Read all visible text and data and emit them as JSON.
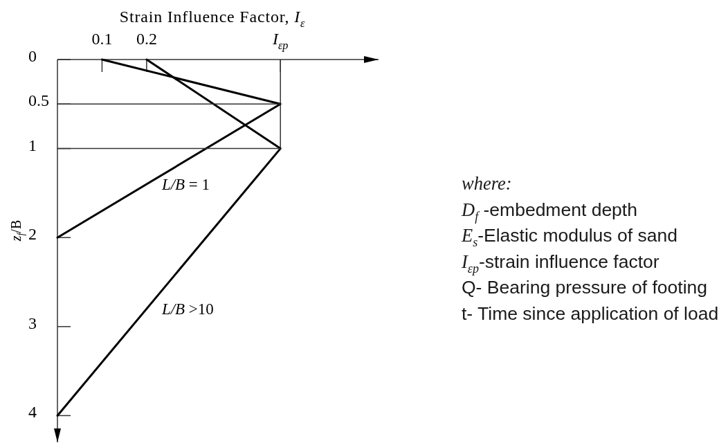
{
  "chart_data": {
    "type": "line",
    "xlabel": "Strain Influence Factor, I$_{ε}$",
    "ylabel": "z$_{f}$/B",
    "xlim": [
      0,
      0.72
    ],
    "ylim": [
      4.3,
      0
    ],
    "xticks": [
      0.1,
      0.2,
      {
        "value": 0.5,
        "label": "I$_{εp}$"
      }
    ],
    "yticks": [
      0,
      0.5,
      1,
      2,
      3,
      4
    ],
    "series": [
      {
        "name": "L/B = 1",
        "color": "#000000",
        "x": [
          0.1,
          0.5,
          0
        ],
        "values": [
          0,
          0.5,
          2
        ]
      },
      {
        "name": "L/B >10",
        "color": "#000000",
        "x": [
          0.2,
          0.5,
          0
        ],
        "values": [
          0,
          1,
          4
        ]
      },
      {
        "color": "#333333",
        "x": [
          0,
          0.5
        ],
        "values": [
          0.5,
          0.5
        ]
      },
      {
        "color": "#333333",
        "x": [
          0,
          0.5
        ],
        "values": [
          1,
          1
        ]
      }
    ],
    "ref_lines": [
      {
        "axis": "x",
        "value": 0.5,
        "color": "#333333"
      }
    ],
    "annotations": [
      "where:",
      "D$_{f}$ -embedment depth",
      "E$_{s}$-Elastic modulus of sand",
      "I$_{εp}$-strain influence factor",
      "Q- Bearing pressure of footing",
      "t- Time since application of load"
    ]
  }
}
